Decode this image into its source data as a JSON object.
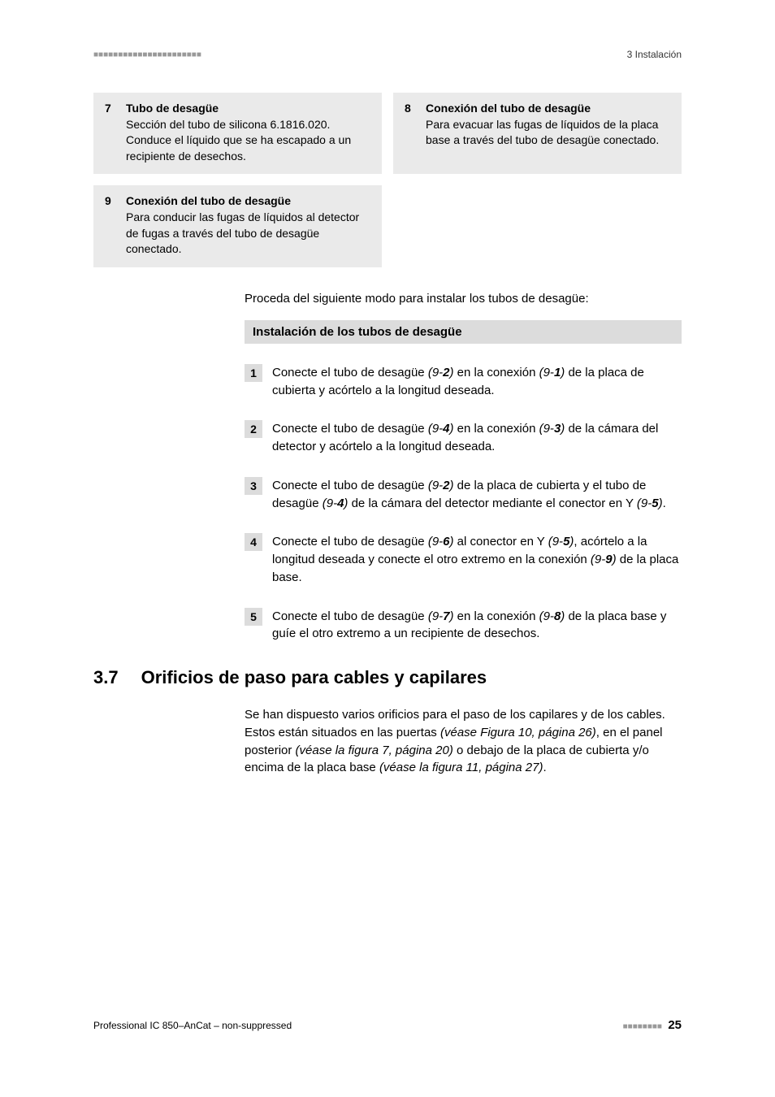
{
  "header": {
    "dashes": "■■■■■■■■■■■■■■■■■■■■■■",
    "section": "3 Instalación"
  },
  "boxes": [
    {
      "num": "7",
      "title": "Tubo de desagüe",
      "body": "Sección del tubo de silicona 6.1816.020. Conduce el líquido que se ha escapado a un recipiente de desechos."
    },
    {
      "num": "8",
      "title": "Conexión del tubo de desagüe",
      "body": "Para evacuar las fugas de líquidos de la placa base a través del tubo de desagüe conectado."
    },
    {
      "num": "9",
      "title": "Conexión del tubo de desagüe",
      "body": "Para conducir las fugas de líquidos al detector de fugas a través del tubo de desagüe conectado."
    }
  ],
  "intro": "Proceda del siguiente modo para instalar los tubos de desagüe:",
  "procedure_title": "Instalación de los tubos de desagüe",
  "steps": [
    {
      "num": "1",
      "parts": [
        {
          "t": "Conecte el tubo de desagüe "
        },
        {
          "t": "(9-",
          "cls": "it"
        },
        {
          "t": "2",
          "cls": "itb"
        },
        {
          "t": ")",
          "cls": "it"
        },
        {
          "t": " en la conexión "
        },
        {
          "t": "(9-",
          "cls": "it"
        },
        {
          "t": "1",
          "cls": "itb"
        },
        {
          "t": ")",
          "cls": "it"
        },
        {
          "t": " de la placa de cubierta y acórtelo a la longitud deseada."
        }
      ]
    },
    {
      "num": "2",
      "parts": [
        {
          "t": "Conecte el tubo de desagüe "
        },
        {
          "t": "(9-",
          "cls": "it"
        },
        {
          "t": "4",
          "cls": "itb"
        },
        {
          "t": ")",
          "cls": "it"
        },
        {
          "t": " en la conexión "
        },
        {
          "t": "(9-",
          "cls": "it"
        },
        {
          "t": "3",
          "cls": "itb"
        },
        {
          "t": ")",
          "cls": "it"
        },
        {
          "t": " de la cámara del detector y acórtelo a la longitud deseada."
        }
      ]
    },
    {
      "num": "3",
      "parts": [
        {
          "t": "Conecte el tubo de desagüe "
        },
        {
          "t": "(9-",
          "cls": "it"
        },
        {
          "t": "2",
          "cls": "itb"
        },
        {
          "t": ")",
          "cls": "it"
        },
        {
          "t": " de la placa de cubierta y el tubo de desagüe "
        },
        {
          "t": "(9-",
          "cls": "it"
        },
        {
          "t": "4",
          "cls": "itb"
        },
        {
          "t": ")",
          "cls": "it"
        },
        {
          "t": " de la cámara del detector mediante el conector en Y "
        },
        {
          "t": "(9-",
          "cls": "it"
        },
        {
          "t": "5",
          "cls": "itb"
        },
        {
          "t": ")",
          "cls": "it"
        },
        {
          "t": "."
        }
      ]
    },
    {
      "num": "4",
      "parts": [
        {
          "t": "Conecte el tubo de desagüe "
        },
        {
          "t": "(9-",
          "cls": "it"
        },
        {
          "t": "6",
          "cls": "itb"
        },
        {
          "t": ")",
          "cls": "it"
        },
        {
          "t": " al conector en Y "
        },
        {
          "t": "(9-",
          "cls": "it"
        },
        {
          "t": "5",
          "cls": "itb"
        },
        {
          "t": ")",
          "cls": "it"
        },
        {
          "t": ", acórtelo a la longitud deseada y conecte el otro extremo en la conexión "
        },
        {
          "t": "(9-",
          "cls": "it"
        },
        {
          "t": "9",
          "cls": "itb"
        },
        {
          "t": ")",
          "cls": "it"
        },
        {
          "t": " de la placa base."
        }
      ]
    },
    {
      "num": "5",
      "parts": [
        {
          "t": "Conecte el tubo de desagüe "
        },
        {
          "t": "(9-",
          "cls": "it"
        },
        {
          "t": "7",
          "cls": "itb"
        },
        {
          "t": ")",
          "cls": "it"
        },
        {
          "t": " en la conexión "
        },
        {
          "t": "(9-",
          "cls": "it"
        },
        {
          "t": "8",
          "cls": "itb"
        },
        {
          "t": ")",
          "cls": "it"
        },
        {
          "t": " de la placa base y guíe el otro extremo a un recipiente de desechos."
        }
      ]
    }
  ],
  "section": {
    "num": "3.7",
    "title": "Orificios de paso para cables y capilares",
    "body_parts": [
      {
        "t": "Se han dispuesto varios orificios para el paso de los capilares y de los cables. Estos están situados en las puertas "
      },
      {
        "t": "(véase Figura 10, página 26)",
        "cls": "it"
      },
      {
        "t": ", en el panel posterior "
      },
      {
        "t": "(véase la figura 7, página 20)",
        "cls": "it"
      },
      {
        "t": " o debajo de la placa de cubierta y/o encima de la placa base "
      },
      {
        "t": "(véase la figura 11, página 27)",
        "cls": "it"
      },
      {
        "t": "."
      }
    ]
  },
  "footer": {
    "left": "Professional IC 850–AnCat – non-suppressed",
    "dashes": "■■■■■■■■",
    "page": "25"
  }
}
